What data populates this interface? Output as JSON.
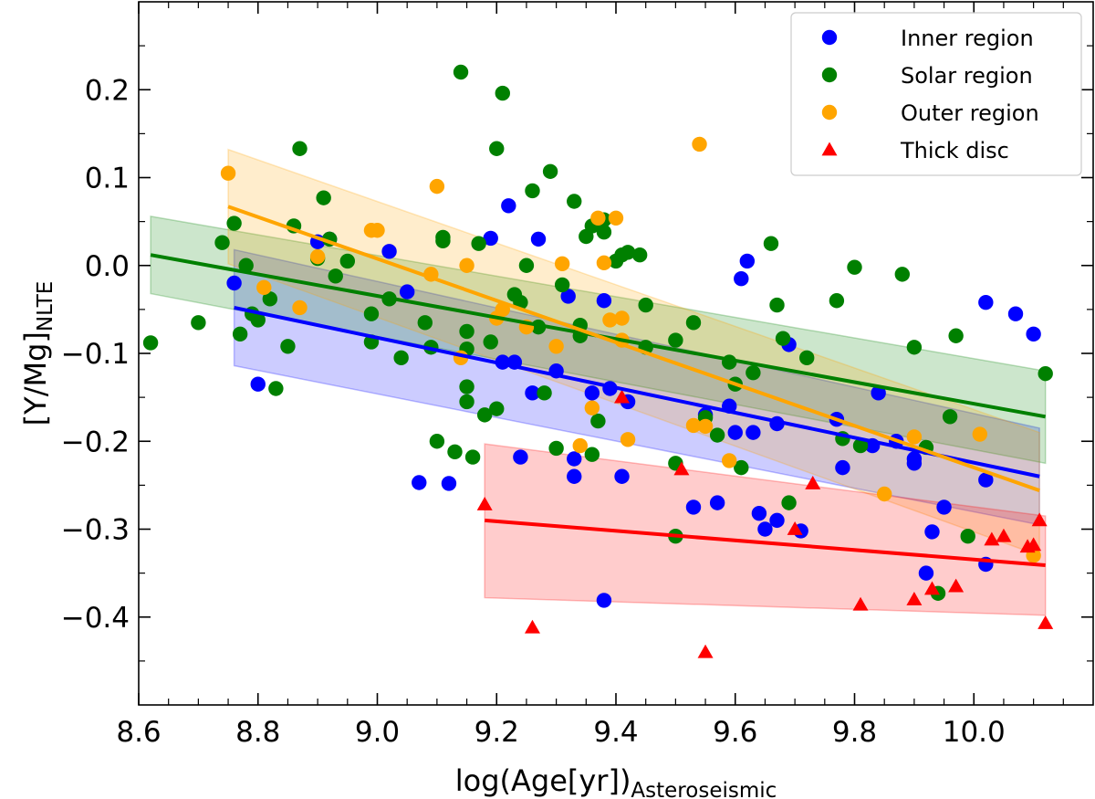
{
  "chart_data": {
    "type": "scatter",
    "xlabel": "log(Age[yr])",
    "xlabel_sub": "Asteroseismic",
    "ylabel": "[Y/Mg]",
    "ylabel_sub": "NLTE",
    "xlim": [
      8.6,
      10.2
    ],
    "ylim": [
      -0.5,
      0.3
    ],
    "xticks": [
      8.6,
      8.8,
      9.0,
      9.2,
      9.4,
      9.6,
      9.8,
      10.0
    ],
    "xtick_labels": [
      "8.6",
      "8.8",
      "9.0",
      "9.2",
      "9.4",
      "9.6",
      "9.8",
      "10.0"
    ],
    "yticks": [
      -0.4,
      -0.3,
      -0.2,
      -0.1,
      0.0,
      0.1,
      0.2
    ],
    "ytick_labels": [
      "−0.4",
      "−0.3",
      "−0.2",
      "−0.1",
      "0.0",
      "0.1",
      "0.2"
    ],
    "legend_position": "top-right",
    "series": [
      {
        "name": "Inner region",
        "color": "#0000ff",
        "marker": "circle",
        "fit": {
          "x": [
            8.76,
            10.11
          ],
          "y": [
            -0.048,
            -0.24
          ]
        },
        "band": {
          "x": [
            8.76,
            10.11
          ],
          "upper": [
            0.018,
            -0.185
          ],
          "lower": [
            -0.114,
            -0.295
          ]
        },
        "points": [
          [
            8.76,
            -0.02
          ],
          [
            8.8,
            -0.135
          ],
          [
            8.9,
            0.027
          ],
          [
            8.92,
            0.03
          ],
          [
            9.02,
            0.016
          ],
          [
            9.05,
            -0.03
          ],
          [
            9.07,
            -0.247
          ],
          [
            9.12,
            -0.248
          ],
          [
            9.19,
            0.031
          ],
          [
            9.21,
            -0.11
          ],
          [
            9.22,
            0.068
          ],
          [
            9.23,
            -0.11
          ],
          [
            9.24,
            -0.218
          ],
          [
            9.26,
            -0.145
          ],
          [
            9.27,
            0.03
          ],
          [
            9.3,
            -0.12
          ],
          [
            9.32,
            -0.035
          ],
          [
            9.33,
            -0.22
          ],
          [
            9.33,
            -0.24
          ],
          [
            9.36,
            -0.145
          ],
          [
            9.38,
            -0.04
          ],
          [
            9.39,
            -0.14
          ],
          [
            9.41,
            -0.24
          ],
          [
            9.42,
            -0.155
          ],
          [
            9.38,
            -0.381
          ],
          [
            9.53,
            -0.275
          ],
          [
            9.55,
            -0.17
          ],
          [
            9.57,
            -0.27
          ],
          [
            9.59,
            -0.16
          ],
          [
            9.6,
            -0.19
          ],
          [
            9.61,
            -0.015
          ],
          [
            9.62,
            0.005
          ],
          [
            9.63,
            -0.19
          ],
          [
            9.64,
            -0.282
          ],
          [
            9.65,
            -0.3
          ],
          [
            9.67,
            -0.29
          ],
          [
            9.67,
            -0.18
          ],
          [
            9.69,
            -0.09
          ],
          [
            9.71,
            -0.302
          ],
          [
            9.77,
            -0.175
          ],
          [
            9.78,
            -0.23
          ],
          [
            9.83,
            -0.205
          ],
          [
            9.84,
            -0.145
          ],
          [
            9.87,
            -0.2
          ],
          [
            9.9,
            -0.22
          ],
          [
            9.9,
            -0.225
          ],
          [
            9.92,
            -0.35
          ],
          [
            9.93,
            -0.303
          ],
          [
            9.95,
            -0.275
          ],
          [
            10.02,
            -0.042
          ],
          [
            10.02,
            -0.244
          ],
          [
            10.02,
            -0.34
          ],
          [
            10.07,
            -0.055
          ],
          [
            10.1,
            -0.078
          ]
        ]
      },
      {
        "name": "Solar region",
        "color": "#008000",
        "marker": "circle",
        "fit": {
          "x": [
            8.62,
            10.12
          ],
          "y": [
            0.012,
            -0.172
          ]
        },
        "band": {
          "x": [
            8.62,
            10.12
          ],
          "upper": [
            0.056,
            -0.12
          ],
          "lower": [
            -0.032,
            -0.225
          ]
        },
        "points": [
          [
            8.62,
            -0.088
          ],
          [
            8.7,
            -0.065
          ],
          [
            8.74,
            0.026
          ],
          [
            8.76,
            0.048
          ],
          [
            8.77,
            -0.078
          ],
          [
            8.78,
            0.0
          ],
          [
            8.79,
            -0.055
          ],
          [
            8.8,
            -0.062
          ],
          [
            8.82,
            -0.038
          ],
          [
            8.83,
            -0.14
          ],
          [
            8.85,
            -0.092
          ],
          [
            8.86,
            0.045
          ],
          [
            8.87,
            0.133
          ],
          [
            8.9,
            0.008
          ],
          [
            8.91,
            0.077
          ],
          [
            8.92,
            0.03
          ],
          [
            8.93,
            -0.012
          ],
          [
            8.95,
            0.005
          ],
          [
            8.99,
            -0.055
          ],
          [
            8.99,
            -0.087
          ],
          [
            9.02,
            -0.038
          ],
          [
            9.04,
            -0.105
          ],
          [
            9.08,
            -0.065
          ],
          [
            9.09,
            -0.093
          ],
          [
            9.1,
            -0.2
          ],
          [
            9.11,
            0.028
          ],
          [
            9.11,
            0.032
          ],
          [
            9.13,
            -0.212
          ],
          [
            9.14,
            0.22
          ],
          [
            9.15,
            -0.075
          ],
          [
            9.15,
            -0.095
          ],
          [
            9.15,
            -0.138
          ],
          [
            9.15,
            -0.155
          ],
          [
            9.16,
            -0.218
          ],
          [
            9.17,
            0.025
          ],
          [
            9.18,
            -0.17
          ],
          [
            9.19,
            -0.087
          ],
          [
            9.2,
            0.133
          ],
          [
            9.2,
            -0.163
          ],
          [
            9.21,
            0.196
          ],
          [
            9.23,
            -0.033
          ],
          [
            9.24,
            -0.042
          ],
          [
            9.25,
            0.0
          ],
          [
            9.26,
            0.085
          ],
          [
            9.27,
            -0.07
          ],
          [
            9.28,
            -0.145
          ],
          [
            9.29,
            0.107
          ],
          [
            9.3,
            -0.208
          ],
          [
            9.31,
            -0.022
          ],
          [
            9.33,
            0.073
          ],
          [
            9.34,
            -0.068
          ],
          [
            9.34,
            -0.08
          ],
          [
            9.35,
            0.033
          ],
          [
            9.36,
            0.045
          ],
          [
            9.36,
            -0.215
          ],
          [
            9.37,
            -0.177
          ],
          [
            9.38,
            0.038
          ],
          [
            9.38,
            0.052
          ],
          [
            9.4,
            0.005
          ],
          [
            9.41,
            0.012
          ],
          [
            9.42,
            0.015
          ],
          [
            9.44,
            0.012
          ],
          [
            9.45,
            -0.093
          ],
          [
            9.45,
            -0.045
          ],
          [
            9.5,
            -0.308
          ],
          [
            9.5,
            -0.225
          ],
          [
            9.5,
            -0.085
          ],
          [
            9.53,
            -0.065
          ],
          [
            9.55,
            -0.173
          ],
          [
            9.57,
            -0.193
          ],
          [
            9.59,
            -0.11
          ],
          [
            9.6,
            -0.135
          ],
          [
            9.61,
            -0.23
          ],
          [
            9.63,
            -0.122
          ],
          [
            9.66,
            0.025
          ],
          [
            9.67,
            -0.045
          ],
          [
            9.68,
            -0.083
          ],
          [
            9.69,
            -0.27
          ],
          [
            9.72,
            -0.105
          ],
          [
            9.77,
            -0.04
          ],
          [
            9.78,
            -0.197
          ],
          [
            9.8,
            -0.002
          ],
          [
            9.81,
            -0.205
          ],
          [
            9.88,
            -0.01
          ],
          [
            9.9,
            -0.093
          ],
          [
            9.92,
            -0.207
          ],
          [
            9.94,
            -0.373
          ],
          [
            9.96,
            -0.172
          ],
          [
            9.97,
            -0.08
          ],
          [
            9.99,
            -0.308
          ],
          [
            10.12,
            -0.123
          ]
        ]
      },
      {
        "name": "Outer region",
        "color": "#ffa500",
        "marker": "circle",
        "fit": {
          "x": [
            8.75,
            10.11
          ],
          "y": [
            0.067,
            -0.256
          ]
        },
        "band": {
          "x": [
            8.75,
            10.11
          ],
          "upper": [
            0.132,
            -0.19
          ],
          "lower": [
            0.002,
            -0.33
          ]
        },
        "points": [
          [
            8.75,
            0.105
          ],
          [
            8.81,
            -0.025
          ],
          [
            8.87,
            -0.048
          ],
          [
            8.9,
            0.01
          ],
          [
            8.99,
            0.04
          ],
          [
            9.0,
            0.04
          ],
          [
            9.09,
            -0.01
          ],
          [
            9.1,
            0.09
          ],
          [
            9.14,
            -0.105
          ],
          [
            9.15,
            0.0
          ],
          [
            9.2,
            -0.06
          ],
          [
            9.21,
            -0.05
          ],
          [
            9.25,
            -0.07
          ],
          [
            9.3,
            -0.092
          ],
          [
            9.31,
            0.002
          ],
          [
            9.34,
            -0.205
          ],
          [
            9.36,
            -0.162
          ],
          [
            9.37,
            0.054
          ],
          [
            9.38,
            0.003
          ],
          [
            9.39,
            -0.062
          ],
          [
            9.4,
            0.054
          ],
          [
            9.41,
            -0.06
          ],
          [
            9.41,
            -0.085
          ],
          [
            9.42,
            -0.198
          ],
          [
            9.53,
            -0.182
          ],
          [
            9.54,
            0.138
          ],
          [
            9.55,
            -0.183
          ],
          [
            9.59,
            -0.222
          ],
          [
            9.85,
            -0.26
          ],
          [
            9.9,
            -0.195
          ],
          [
            10.01,
            -0.192
          ],
          [
            10.1,
            -0.33
          ]
        ]
      },
      {
        "name": "Thick disc",
        "color": "#ff0000",
        "marker": "triangle",
        "fit": {
          "x": [
            9.18,
            10.12
          ],
          "y": [
            -0.29,
            -0.341
          ]
        },
        "band": {
          "x": [
            9.18,
            10.12
          ],
          "upper": [
            -0.203,
            -0.285
          ],
          "lower": [
            -0.378,
            -0.398
          ]
        },
        "points": [
          [
            9.18,
            -0.272
          ],
          [
            9.26,
            -0.412
          ],
          [
            9.41,
            -0.15
          ],
          [
            9.51,
            -0.232
          ],
          [
            9.55,
            -0.44
          ],
          [
            9.7,
            -0.3
          ],
          [
            9.73,
            -0.248
          ],
          [
            9.81,
            -0.386
          ],
          [
            9.9,
            -0.38
          ],
          [
            9.93,
            -0.368
          ],
          [
            9.97,
            -0.365
          ],
          [
            10.03,
            -0.312
          ],
          [
            10.05,
            -0.308
          ],
          [
            10.09,
            -0.32
          ],
          [
            10.1,
            -0.318
          ],
          [
            10.11,
            -0.29
          ],
          [
            10.12,
            -0.407
          ]
        ]
      }
    ]
  }
}
